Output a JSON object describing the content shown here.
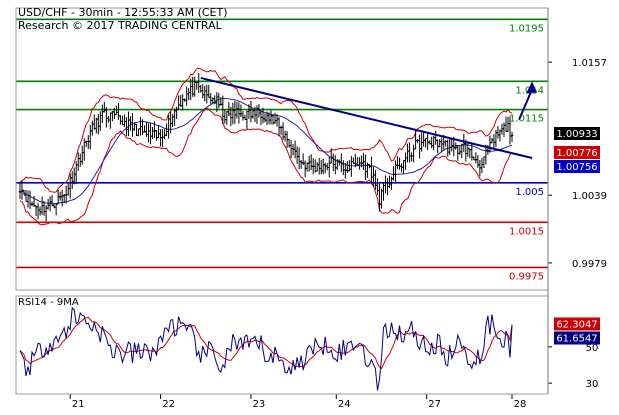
{
  "header": {
    "title": "USD/CHF - 30min - 12:55:33 AM (CET)",
    "copyright": "Research © 2017 TRADING CENTRAL"
  },
  "chart_data": {
    "type": "candlestick",
    "symbol": "USD/CHF",
    "interval": "30min",
    "price_axis": {
      "range": [
        0.9955,
        1.0205
      ],
      "ticks": [
        "1.0157",
        "1.0039",
        "0.9979"
      ],
      "tick_values": [
        1.0157,
        1.0039,
        0.9979
      ]
    },
    "x_axis": {
      "ticks": [
        "21",
        "22",
        "23",
        "24",
        "27",
        "28"
      ],
      "tick_index": [
        50,
        140,
        230,
        315,
        405,
        490
      ],
      "n_bars": 490
    },
    "levels": [
      {
        "label": "1.0195",
        "value": 1.0195,
        "color": "#008000",
        "kind": "resistance"
      },
      {
        "label": "1.014",
        "value": 1.014,
        "color": "#008000",
        "kind": "resistance"
      },
      {
        "label": "1.0115",
        "value": 1.0115,
        "color": "#008000",
        "kind": "resistance"
      },
      {
        "label": "1.005",
        "value": 1.005,
        "color": "#0000cc",
        "kind": "pivot"
      },
      {
        "label": "1.0015",
        "value": 1.0015,
        "color": "#cc0000",
        "kind": "support"
      },
      {
        "label": "0.9975",
        "value": 0.9975,
        "color": "#cc0000",
        "kind": "support"
      }
    ],
    "price_badges": [
      {
        "label": "1.00933",
        "value": 1.00933,
        "bg": "#000000",
        "fg": "#ffffff"
      },
      {
        "label": "1.00776",
        "value": 1.00776,
        "bg": "#cc0000",
        "fg": "#ffffff"
      },
      {
        "label": "1.00756",
        "value": 1.00756,
        "bg": "#0000cc",
        "fg": "#ffffff"
      }
    ],
    "trendline": {
      "from": {
        "bar": 180,
        "price": 1.0143
      },
      "to": {
        "bar": 510,
        "price": 1.0072
      },
      "color": "#000080"
    },
    "arrow": {
      "from": {
        "bar": 497,
        "price": 1.0106
      },
      "to": {
        "bar": 510,
        "price": 1.014
      },
      "color": "#000080"
    },
    "price_keypoints": [
      [
        0,
        1.0047
      ],
      [
        10,
        1.0032
      ],
      [
        20,
        1.0027
      ],
      [
        30,
        1.003
      ],
      [
        45,
        1.004
      ],
      [
        55,
        1.0063
      ],
      [
        70,
        1.0095
      ],
      [
        82,
        1.011
      ],
      [
        95,
        1.0108
      ],
      [
        110,
        1.01
      ],
      [
        125,
        1.0093
      ],
      [
        140,
        1.009
      ],
      [
        155,
        1.0115
      ],
      [
        162,
        1.0125
      ],
      [
        175,
        1.0135
      ],
      [
        185,
        1.0127
      ],
      [
        195,
        1.0123
      ],
      [
        205,
        1.0108
      ],
      [
        215,
        1.0112
      ],
      [
        225,
        1.011
      ],
      [
        240,
        1.0113
      ],
      [
        255,
        1.0103
      ],
      [
        265,
        1.009
      ],
      [
        280,
        1.0068
      ],
      [
        295,
        1.0063
      ],
      [
        310,
        1.0068
      ],
      [
        325,
        1.0063
      ],
      [
        340,
        1.0068
      ],
      [
        350,
        1.006
      ],
      [
        358,
        1.0036
      ],
      [
        365,
        1.0048
      ],
      [
        375,
        1.0062
      ],
      [
        385,
        1.0072
      ],
      [
        395,
        1.0084
      ],
      [
        405,
        1.0086
      ],
      [
        420,
        1.0086
      ],
      [
        432,
        1.0078
      ],
      [
        442,
        1.0082
      ],
      [
        452,
        1.0072
      ],
      [
        460,
        1.0066
      ],
      [
        466,
        1.0078
      ],
      [
        475,
        1.0092
      ],
      [
        485,
        1.01
      ],
      [
        490,
        1.0094
      ]
    ],
    "rsi": {
      "title": "RSI14 - 9MA",
      "range": [
        24,
        78
      ],
      "ticks": [
        "50",
        "30"
      ],
      "tick_values": [
        50,
        30
      ],
      "rsi_label": "61.6547",
      "rsi_value": 61.6547,
      "ma_label": "62.3047",
      "ma_value": 62.3047,
      "rsi_color": "#000080",
      "ma_color": "#cc0000"
    }
  }
}
